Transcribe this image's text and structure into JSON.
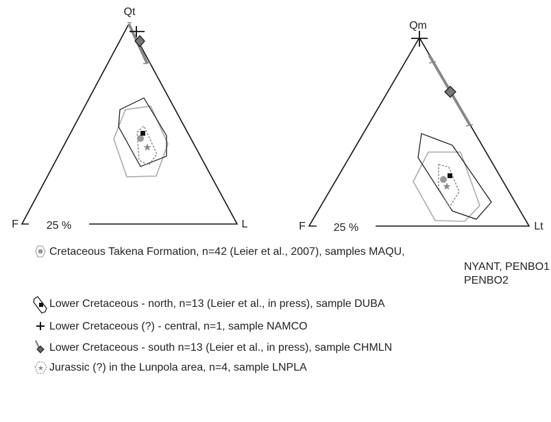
{
  "diagrams": [
    {
      "apex_top": "Qt",
      "apex_left": "F",
      "apex_right": "L",
      "scale_label": "25 %"
    },
    {
      "apex_top": "Qm",
      "apex_left": "F",
      "apex_right": "Lt",
      "scale_label": "25 %"
    }
  ],
  "legend": [
    {
      "text": "Cretaceous Takena Formation, n=42 (Leier et al., 2007), samples MAQU,",
      "continuation": [
        "NYANT, PENBO1",
        "PENBO2"
      ]
    },
    {
      "text": "Lower Cretaceous - north, n=13 (Leier et al., in press), sample DUBA"
    },
    {
      "text": "Lower Cretaceous (?) - central, n=1, sample NAMCO"
    },
    {
      "text": "Lower Cretaceous - south n=13 (Leier et al., in press), sample CHMLN"
    },
    {
      "text": "Jurassic (?) in the Lunpola area, n=4, sample LNPLA"
    }
  ]
}
